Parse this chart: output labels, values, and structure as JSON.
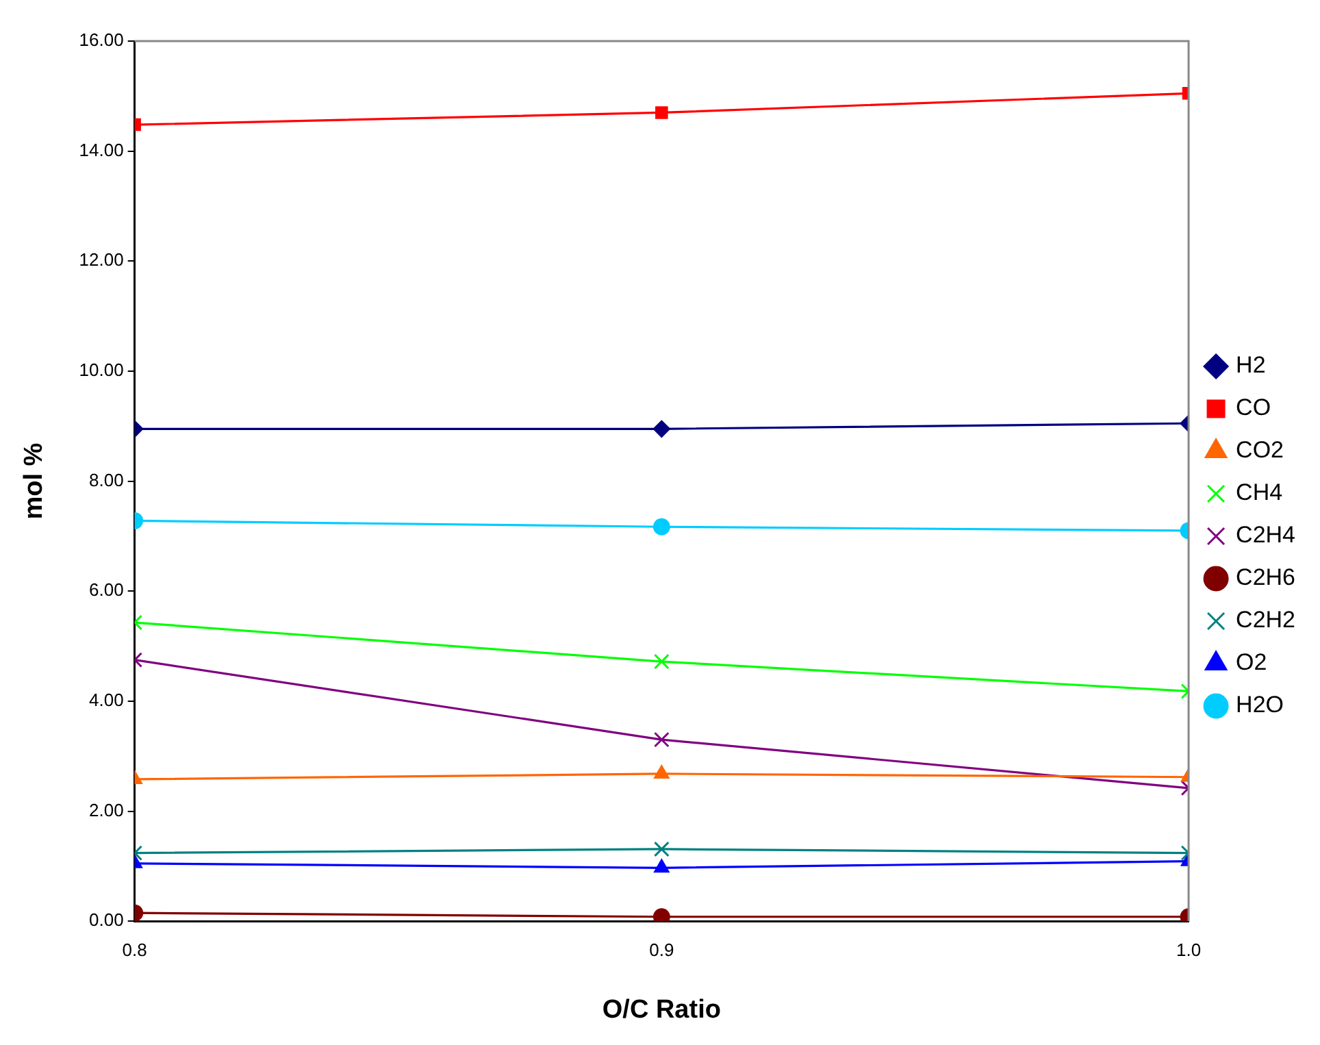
{
  "chart_data": {
    "type": "line",
    "xlabel": "O/C Ratio",
    "ylabel": "mol %",
    "x": [
      0.8,
      0.9,
      1.0
    ],
    "xlim": [
      0.8,
      1.0
    ],
    "xticks": [
      0.8,
      0.9,
      {
        "value": 1.0,
        "label": "1.0"
      }
    ],
    "ylim": [
      0,
      16
    ],
    "yticks": [
      {
        "value": 0,
        "label": "0.00"
      },
      {
        "value": 2,
        "label": "2.00"
      },
      {
        "value": 4,
        "label": "4.00"
      },
      {
        "value": 6,
        "label": "6.00"
      },
      {
        "value": 8,
        "label": "8.00"
      },
      {
        "value": 10,
        "label": "10.00"
      },
      {
        "value": 12,
        "label": "12.00"
      },
      {
        "value": 14,
        "label": "14.00"
      },
      {
        "value": 16,
        "label": "16.00"
      }
    ],
    "grid": false,
    "legend": "right",
    "line_style": "solid",
    "series": [
      {
        "name": "H2",
        "color": "#000080",
        "marker": "diamond",
        "values": [
          8.95,
          8.95,
          9.05
        ]
      },
      {
        "name": "CO",
        "color": "#ff0000",
        "marker": "square",
        "values": [
          14.48,
          14.7,
          15.05
        ]
      },
      {
        "name": "CO2",
        "color": "#ff6600",
        "marker": "triangle",
        "values": [
          2.58,
          2.68,
          2.62
        ]
      },
      {
        "name": "CH4",
        "color": "#00ff00",
        "marker": "cross",
        "values": [
          5.43,
          4.72,
          4.18
        ]
      },
      {
        "name": "C2H4",
        "color": "#800080",
        "marker": "cross",
        "values": [
          4.75,
          3.3,
          2.42
        ]
      },
      {
        "name": "C2H6",
        "color": "#800000",
        "marker": "circle",
        "values": [
          0.15,
          0.08,
          0.08
        ]
      },
      {
        "name": "C2H2",
        "color": "#008080",
        "marker": "cross",
        "values": [
          1.24,
          1.31,
          1.24
        ]
      },
      {
        "name": "O2",
        "color": "#0000ff",
        "marker": "triangle",
        "values": [
          1.05,
          0.97,
          1.09
        ]
      },
      {
        "name": "H2O",
        "color": "#00ccff",
        "marker": "circle",
        "values": [
          7.28,
          7.17,
          7.1
        ]
      }
    ]
  }
}
